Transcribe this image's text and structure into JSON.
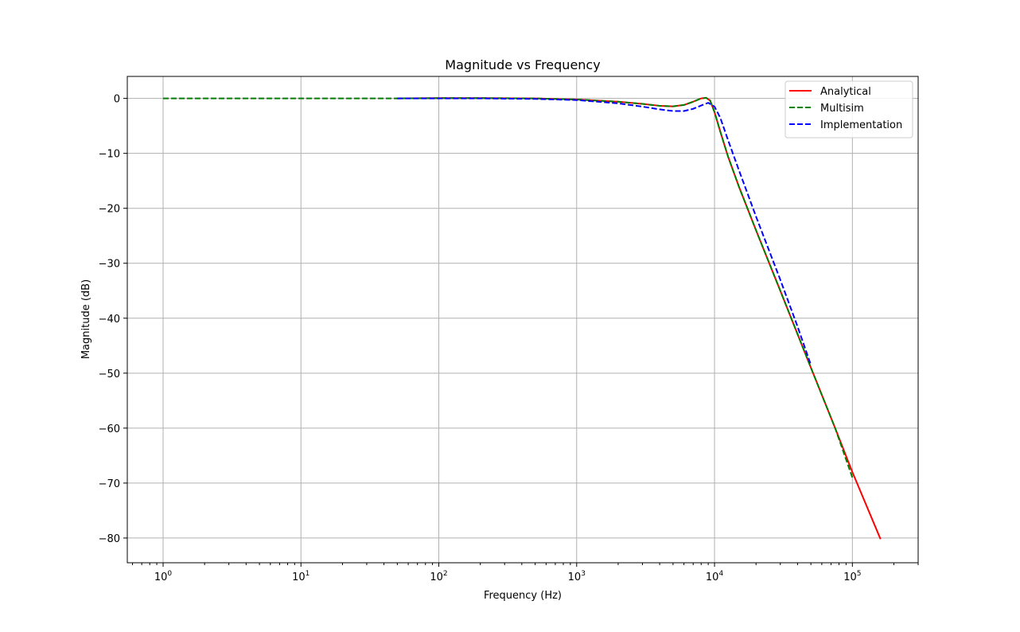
{
  "chart_data": {
    "type": "line",
    "title": "Magnitude vs Frequency",
    "xlabel": "Frequency (Hz)",
    "ylabel": "Magnitude (dB)",
    "xscale": "log",
    "xlim": [
      0.55,
      300000
    ],
    "ylim": [
      -84.5,
      4
    ],
    "grid": true,
    "legend_position": "top-right",
    "x_ticks": [
      {
        "value": 1,
        "base": "10",
        "exp": "0"
      },
      {
        "value": 10,
        "base": "10",
        "exp": "1"
      },
      {
        "value": 100,
        "base": "10",
        "exp": "2"
      },
      {
        "value": 1000,
        "base": "10",
        "exp": "3"
      },
      {
        "value": 10000,
        "base": "10",
        "exp": "4"
      },
      {
        "value": 100000,
        "base": "10",
        "exp": "5"
      }
    ],
    "y_ticks": [
      {
        "value": 0,
        "label": "0"
      },
      {
        "value": -10,
        "label": "−10"
      },
      {
        "value": -20,
        "label": "−20"
      },
      {
        "value": -30,
        "label": "−30"
      },
      {
        "value": -40,
        "label": "−40"
      },
      {
        "value": -50,
        "label": "−50"
      },
      {
        "value": -60,
        "label": "−60"
      },
      {
        "value": -70,
        "label": "−70"
      },
      {
        "value": -80,
        "label": "−80"
      }
    ],
    "series": [
      {
        "name": "Analytical",
        "color": "#ff0000",
        "dash": "solid",
        "points": [
          [
            50,
            0
          ],
          [
            100,
            0.05
          ],
          [
            200,
            0.05
          ],
          [
            500,
            0
          ],
          [
            1000,
            -0.2
          ],
          [
            2000,
            -0.6
          ],
          [
            3000,
            -1.0
          ],
          [
            4000,
            -1.35
          ],
          [
            5000,
            -1.45
          ],
          [
            6000,
            -1.2
          ],
          [
            7000,
            -0.6
          ],
          [
            8000,
            0
          ],
          [
            8700,
            0.1
          ],
          [
            9300,
            -0.4
          ],
          [
            10000,
            -2.5
          ],
          [
            11000,
            -6
          ],
          [
            12500,
            -10.5
          ],
          [
            15000,
            -16
          ],
          [
            20000,
            -24
          ],
          [
            30000,
            -35
          ],
          [
            50000,
            -49
          ],
          [
            75000,
            -60
          ],
          [
            100000,
            -68
          ],
          [
            160000,
            -80.2
          ]
        ]
      },
      {
        "name": "Multisim",
        "color": "#008000",
        "dash": "dashed",
        "points": [
          [
            1,
            0
          ],
          [
            10,
            0
          ],
          [
            50,
            0
          ],
          [
            100,
            0.05
          ],
          [
            200,
            0.05
          ],
          [
            500,
            0
          ],
          [
            1000,
            -0.2
          ],
          [
            2000,
            -0.6
          ],
          [
            3000,
            -1.0
          ],
          [
            4000,
            -1.35
          ],
          [
            5000,
            -1.45
          ],
          [
            6000,
            -1.2
          ],
          [
            7000,
            -0.6
          ],
          [
            8000,
            0
          ],
          [
            8700,
            0.1
          ],
          [
            9300,
            -0.4
          ],
          [
            10000,
            -2.5
          ],
          [
            11000,
            -6
          ],
          [
            12500,
            -10.5
          ],
          [
            15000,
            -16
          ],
          [
            20000,
            -24
          ],
          [
            30000,
            -35
          ],
          [
            50000,
            -49
          ],
          [
            75000,
            -60
          ],
          [
            100000,
            -69
          ]
        ]
      },
      {
        "name": "Implementation",
        "color": "#0000ff",
        "dash": "dashed",
        "points": [
          [
            50,
            0
          ],
          [
            100,
            0
          ],
          [
            200,
            0
          ],
          [
            500,
            -0.1
          ],
          [
            1000,
            -0.3
          ],
          [
            2000,
            -0.9
          ],
          [
            3000,
            -1.5
          ],
          [
            4000,
            -2.0
          ],
          [
            5000,
            -2.3
          ],
          [
            6000,
            -2.3
          ],
          [
            7000,
            -1.9
          ],
          [
            8000,
            -1.3
          ],
          [
            9000,
            -0.8
          ],
          [
            10000,
            -1.5
          ],
          [
            11000,
            -3.5
          ],
          [
            12500,
            -7.5
          ],
          [
            15000,
            -13
          ],
          [
            20000,
            -21.5
          ],
          [
            30000,
            -33
          ],
          [
            40000,
            -41.5
          ],
          [
            50000,
            -48.5
          ]
        ]
      }
    ]
  }
}
